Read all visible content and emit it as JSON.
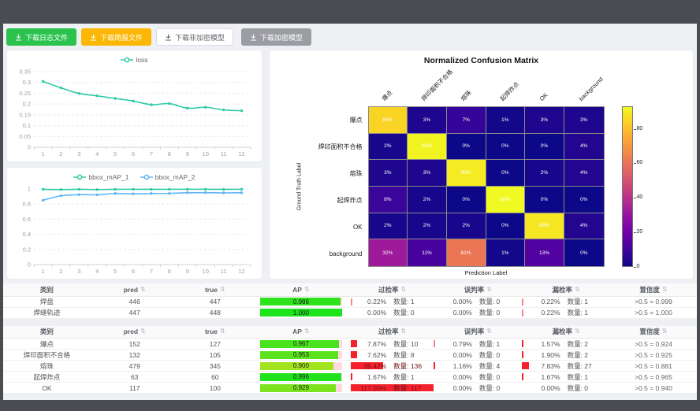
{
  "toolbar": {
    "buttons": [
      {
        "label": "下载日志文件",
        "variant": "green"
      },
      {
        "label": "下载简报文件",
        "variant": "orange"
      },
      {
        "label": "下载非加密模型",
        "variant": "white"
      },
      {
        "label": "下载加密模型",
        "variant": "gray"
      }
    ]
  },
  "chart_data": [
    {
      "type": "line",
      "title": "loss curve",
      "x": [
        1,
        2,
        3,
        4,
        5,
        6,
        7,
        8,
        9,
        10,
        11,
        12
      ],
      "ylim": [
        0,
        0.35
      ],
      "yticks": [
        0,
        0.05,
        0.1,
        0.15,
        0.2,
        0.25,
        0.3,
        0.35
      ],
      "legend_position": "top",
      "grid": true,
      "series": [
        {
          "name": "loss",
          "color": "#30c9a7",
          "values": [
            0.305,
            0.275,
            0.249,
            0.238,
            0.226,
            0.214,
            0.197,
            0.202,
            0.181,
            0.185,
            0.173,
            0.169
          ]
        }
      ]
    },
    {
      "type": "line",
      "title": "bbox mAP curves",
      "x": [
        1,
        2,
        3,
        4,
        5,
        6,
        7,
        8,
        9,
        10,
        11,
        12
      ],
      "ylim": [
        0,
        1
      ],
      "yticks": [
        0,
        0.2,
        0.4,
        0.6,
        0.8,
        1
      ],
      "legend_position": "top",
      "grid": true,
      "series": [
        {
          "name": "bbox_mAP_1",
          "color": "#30c9a7",
          "values": [
            0.995,
            0.992,
            0.995,
            0.992,
            0.995,
            0.996,
            0.995,
            0.996,
            0.996,
            0.996,
            0.995,
            0.996
          ]
        },
        {
          "name": "bbox_mAP_2",
          "color": "#62b4f4",
          "values": [
            0.85,
            0.91,
            0.925,
            0.923,
            0.94,
            0.936,
            0.94,
            0.941,
            0.95,
            0.951,
            0.948,
            0.95
          ]
        }
      ]
    },
    {
      "type": "heatmap",
      "title": "Normalized Confusion Matrix",
      "xlabel": "Prediction Label",
      "ylabel": "Ground Truth Label",
      "categories": [
        "爆点",
        "焊印面积不合格",
        "熔珠",
        "起焊炸点",
        "OK",
        "background"
      ],
      "values": [
        [
          85,
          3,
          7,
          1,
          3,
          3
        ],
        [
          2,
          92,
          0,
          0,
          0,
          4
        ],
        [
          3,
          3,
          90,
          0,
          2,
          4
        ],
        [
          8,
          2,
          0,
          93,
          0,
          0
        ],
        [
          2,
          2,
          2,
          0,
          89,
          4
        ],
        [
          32,
          11,
          61,
          1,
          13,
          0
        ]
      ],
      "value_suffix": "%",
      "vmax": 93,
      "colorbar_ticks": [
        0,
        20,
        40,
        60,
        80
      ],
      "colormap": "plasma"
    }
  ],
  "tables": [
    {
      "headers": [
        "类别",
        "pred",
        "true",
        "AP",
        "过检率",
        "误判率",
        "漏检率",
        "置信度"
      ],
      "count_label": "数量:",
      "rows": [
        {
          "name": "焊盘",
          "pred": "446",
          "true": "447",
          "ap": 0.986,
          "ap_text": "0.986",
          "over": {
            "pct": "0.22%",
            "count": "数量: 1",
            "val": 0.22
          },
          "mis": {
            "pct": "0.00%",
            "count": "数量: 0",
            "val": 0
          },
          "miss": {
            "pct": "0.22%",
            "count": "数量: 1",
            "val": 0.22
          },
          "conf": ">0.5 = 0.999"
        },
        {
          "name": "焊缝轨迹",
          "pred": "447",
          "true": "448",
          "ap": 1.0,
          "ap_text": "1.000",
          "over": {
            "pct": "0.00%",
            "count": "数量: 0",
            "val": 0
          },
          "mis": {
            "pct": "0.00%",
            "count": "数量: 0",
            "val": 0
          },
          "miss": {
            "pct": "0.22%",
            "count": "数量: 1",
            "val": 0.22
          },
          "conf": ">0.5 = 1.000"
        }
      ]
    },
    {
      "headers": [
        "类别",
        "pred",
        "true",
        "AP",
        "过检率",
        "误判率",
        "漏检率",
        "置信度"
      ],
      "count_label": "数量:",
      "rows": [
        {
          "name": "爆点",
          "pred": "152",
          "true": "127",
          "ap": 0.967,
          "ap_text": "0.967",
          "over": {
            "pct": "7.87%",
            "count": "数量: 10",
            "val": 7.87
          },
          "mis": {
            "pct": "0.79%",
            "count": "数量: 1",
            "val": 0.79
          },
          "miss": {
            "pct": "1.57%",
            "count": "数量: 2",
            "val": 1.57
          },
          "conf": ">0.5 = 0.924"
        },
        {
          "name": "焊印面积不合格",
          "pred": "132",
          "true": "105",
          "ap": 0.953,
          "ap_text": "0.953",
          "over": {
            "pct": "7.62%",
            "count": "数量: 8",
            "val": 7.62
          },
          "mis": {
            "pct": "0.00%",
            "count": "数量: 0",
            "val": 0
          },
          "miss": {
            "pct": "1.90%",
            "count": "数量: 2",
            "val": 1.9
          },
          "conf": ">0.5 = 0.925"
        },
        {
          "name": "熔珠",
          "pred": "479",
          "true": "345",
          "ap": 0.9,
          "ap_text": "0.900",
          "over": {
            "pct": "39.42%",
            "count": "数量: 136",
            "val": 39.42
          },
          "mis": {
            "pct": "1.16%",
            "count": "数量: 4",
            "val": 1.16
          },
          "miss": {
            "pct": "7.83%",
            "count": "数量: 27",
            "val": 7.83
          },
          "conf": ">0.5 = 0.881"
        },
        {
          "name": "起焊炸点",
          "pred": "63",
          "true": "60",
          "ap": 0.996,
          "ap_text": "0.996",
          "over": {
            "pct": "1.67%",
            "count": "数量: 1",
            "val": 1.67
          },
          "mis": {
            "pct": "0.00%",
            "count": "数量: 0",
            "val": 0
          },
          "miss": {
            "pct": "1.67%",
            "count": "数量: 1",
            "val": 1.67
          },
          "conf": ">0.5 = 0.965"
        },
        {
          "name": "OK",
          "pred": "117",
          "true": "100",
          "ap": 0.929,
          "ap_text": "0.929",
          "over": {
            "pct": "117.00%",
            "count": "数量: 117",
            "val": 117
          },
          "mis": {
            "pct": "0.00%",
            "count": "数量: 0",
            "val": 0
          },
          "miss": {
            "pct": "0.00%",
            "count": "数量: 0",
            "val": 0
          },
          "conf": ">0.5 = 0.940"
        }
      ]
    }
  ]
}
